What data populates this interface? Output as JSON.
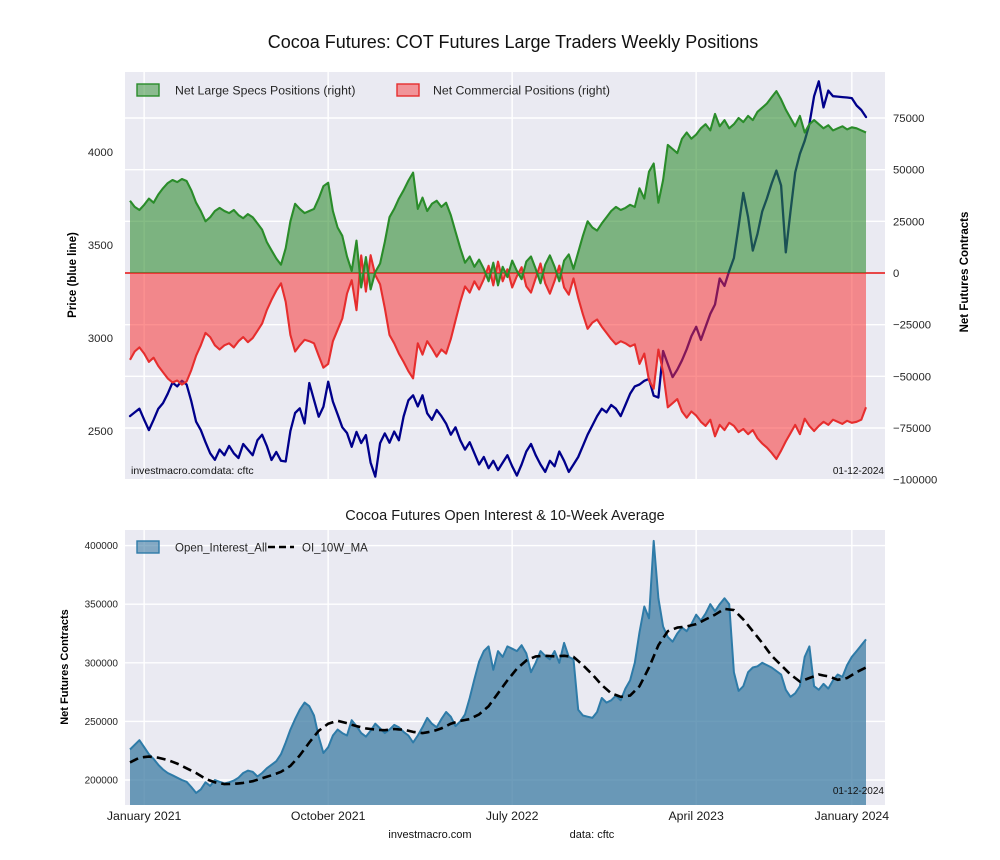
{
  "figure": {
    "title": "Cocoa Futures: COT Futures Large Traders Weekly Positions",
    "footer": {
      "source": "investmacro.com",
      "data_source": "data: cftc"
    }
  },
  "colors": {
    "axes_background": "#eaeaf2",
    "grid": "#ffffff",
    "specs_green_line": "#2a8c2a",
    "specs_green_fill": "rgba(44,140,44,0.58)",
    "commercial_red_line": "#e62e2e",
    "commercial_red_fill": "rgba(250,45,45,0.52)",
    "price_blue": "#00008b",
    "oi_fill": "rgba(62,124,163,0.75)",
    "oi_line": "#2e7ba8",
    "ma_black": "#000000"
  },
  "chart_data": [
    {
      "type": "area",
      "legend": [
        "Net Large Specs Positions (right)",
        "Net Commercial Positions (right)"
      ],
      "y_axis_left": {
        "label": "Price (blue line)",
        "tick_values": [
          2500,
          3000,
          3500,
          4000
        ],
        "tick_labels": [
          "2500",
          "3000",
          "3500",
          "4000"
        ],
        "range": [
          2236,
          4430
        ]
      },
      "y_axis_right": {
        "label": "Net Futures Contracts",
        "tick_values": [
          75000,
          50000,
          25000,
          0,
          -25000,
          -50000,
          -75000,
          -100000
        ],
        "tick_labels": [
          "75000",
          "50000",
          "25000",
          "0",
          "−25000",
          "−50000",
          "−75000",
          "−100000"
        ],
        "range": [
          -100000,
          97000
        ]
      },
      "annotations": {
        "source": "investmacro.com",
        "data_source": "data: cftc",
        "date": "01-12-2024"
      },
      "series": [
        {
          "name": "Net Large Specs Positions",
          "type": "area",
          "axis": "right",
          "values": [
            35000,
            32000,
            30500,
            33000,
            36000,
            34000,
            38000,
            41000,
            43500,
            45000,
            44000,
            45500,
            44500,
            40000,
            34000,
            30000,
            25000,
            27000,
            30000,
            31500,
            30000,
            29000,
            30500,
            28000,
            26500,
            28500,
            27000,
            24000,
            21000,
            15000,
            11000,
            7000,
            4000,
            12000,
            25000,
            33500,
            31000,
            29000,
            30000,
            31000,
            36000,
            42000,
            43700,
            30000,
            22000,
            18000,
            8000,
            1000,
            15700,
            -7000,
            7700,
            -8000,
            500,
            4600,
            15000,
            27000,
            31000,
            36000,
            40000,
            44700,
            48600,
            31000,
            36500,
            30000,
            33500,
            35000,
            32000,
            34000,
            28000,
            20000,
            12000,
            5000,
            8000,
            3000,
            6500,
            2000,
            -4000,
            5000,
            -6000,
            3000,
            -2000,
            6000,
            1000,
            -3000,
            5500,
            8000,
            2000,
            -5000,
            4000,
            8500,
            3000,
            -4000,
            6000,
            9000,
            2000,
            10000,
            18000,
            25000,
            22000,
            20500,
            24000,
            27000,
            30000,
            32000,
            30500,
            31500,
            33000,
            32000,
            41000,
            36000,
            49000,
            53000,
            34000,
            45000,
            62000,
            60000,
            58000,
            65000,
            68000,
            65000,
            67000,
            70000,
            72000,
            69000,
            77000,
            71000,
            74000,
            70000,
            72000,
            75000,
            73000,
            76000,
            74000,
            78000,
            80000,
            82000,
            85000,
            88000,
            84000,
            79000,
            75000,
            71000,
            76000,
            68000,
            72000,
            74000,
            72000,
            70000,
            71500,
            69000,
            70000,
            71000,
            69500,
            70500,
            70000,
            69000,
            68000
          ]
        },
        {
          "name": "Net Commercial Positions",
          "type": "area",
          "axis": "right",
          "values": [
            -42000,
            -38000,
            -36000,
            -39000,
            -43000,
            -41000,
            -45000,
            -48000,
            -51000,
            -53000,
            -52000,
            -54000,
            -52500,
            -47000,
            -40000,
            -35000,
            -29000,
            -31000,
            -35000,
            -37000,
            -35000,
            -34000,
            -36000,
            -33000,
            -31000,
            -33500,
            -31500,
            -28000,
            -24500,
            -18000,
            -13000,
            -8500,
            -5000,
            -14000,
            -30000,
            -38000,
            -35000,
            -32300,
            -33000,
            -34000,
            -40000,
            -45800,
            -44000,
            -33000,
            -27500,
            -22000,
            -10000,
            -3500,
            -18000,
            8500,
            -9000,
            8600,
            -1000,
            -5500,
            -17000,
            -30000,
            -34000,
            -39000,
            -43000,
            -47500,
            -51000,
            -34000,
            -39500,
            -33000,
            -36500,
            -40500,
            -37000,
            -39000,
            -32000,
            -23000,
            -14000,
            -6500,
            -9500,
            -4000,
            -8000,
            -3000,
            3500,
            -6000,
            5500,
            -4000,
            1800,
            -7000,
            -1500,
            2800,
            -6500,
            -9500,
            -2500,
            4600,
            -5000,
            -10000,
            -3800,
            3600,
            -7000,
            -10500,
            -2600,
            -12000,
            -20000,
            -27000,
            -24000,
            -22500,
            -26000,
            -29000,
            -32000,
            -34500,
            -33000,
            -34000,
            -35500,
            -34500,
            -44000,
            -39000,
            -52000,
            -56000,
            -37000,
            -48000,
            -65000,
            -63000,
            -61000,
            -67000,
            -70000,
            -67000,
            -69000,
            -72000,
            -74000,
            -71000,
            -79000,
            -73500,
            -76000,
            -72500,
            -74000,
            -77000,
            -75500,
            -78000,
            -76000,
            -80000,
            -82500,
            -84500,
            -87000,
            -90000,
            -86000,
            -81500,
            -77500,
            -73500,
            -78000,
            -70500,
            -74000,
            -76500,
            -74000,
            -72000,
            -73500,
            -71000,
            -72000,
            -73000,
            -71500,
            -72500,
            -72000,
            -71000,
            -65000
          ]
        },
        {
          "name": "Price",
          "type": "line",
          "axis": "left",
          "values": [
            2580,
            2600,
            2620,
            2560,
            2505,
            2560,
            2620,
            2650,
            2700,
            2760,
            2740,
            2770,
            2750,
            2660,
            2550,
            2505,
            2440,
            2380,
            2345,
            2400,
            2370,
            2420,
            2380,
            2355,
            2430,
            2400,
            2370,
            2450,
            2480,
            2420,
            2344,
            2387,
            2340,
            2336,
            2500,
            2597,
            2622,
            2541,
            2758,
            2667,
            2577,
            2630,
            2765,
            2658,
            2590,
            2520,
            2489,
            2415,
            2495,
            2435,
            2478,
            2330,
            2255,
            2435,
            2487,
            2437,
            2497,
            2450,
            2578,
            2665,
            2692,
            2632,
            2692,
            2595,
            2560,
            2613,
            2580,
            2540,
            2480,
            2520,
            2450,
            2400,
            2440,
            2380,
            2320,
            2360,
            2300,
            2340,
            2290,
            2330,
            2370,
            2310,
            2260,
            2320,
            2390,
            2430,
            2370,
            2320,
            2280,
            2340,
            2310,
            2390,
            2340,
            2280,
            2320,
            2360,
            2420,
            2480,
            2530,
            2580,
            2620,
            2600,
            2640,
            2620,
            2580,
            2640,
            2700,
            2740,
            2750,
            2770,
            2780,
            2690,
            2680,
            2930,
            2860,
            2790,
            2830,
            2880,
            2940,
            3010,
            3060,
            2990,
            3060,
            3130,
            3180,
            3320,
            3280,
            3360,
            3430,
            3600,
            3780,
            3650,
            3470,
            3560,
            3680,
            3750,
            3830,
            3900,
            3820,
            3460,
            3680,
            3890,
            3990,
            4060,
            4150,
            4300,
            4380,
            4240,
            4330,
            4300,
            4298,
            4295,
            4293,
            4290,
            4250,
            4226,
            4188
          ]
        }
      ]
    },
    {
      "type": "area",
      "title": "Cocoa Futures Open Interest & 10-Week Average",
      "legend": [
        "Open_Interest_All",
        "OI_10W_MA"
      ],
      "y_axis": {
        "label": "Net Futures Contracts",
        "tick_values": [
          200000,
          250000,
          300000,
          350000,
          400000
        ],
        "tick_labels": [
          "200000",
          "250000",
          "300000",
          "350000",
          "400000"
        ],
        "range": [
          178700,
          413400
        ]
      },
      "x_axis": {
        "tick_labels": [
          "January 2021",
          "October 2021",
          "July 2022",
          "April 2023",
          "January 2024"
        ],
        "tick_weeks": [
          3,
          42,
          81,
          120,
          153
        ],
        "n_weeks": 157
      },
      "annotations": {
        "date": "01-12-2024"
      },
      "series": [
        {
          "name": "Open_Interest_All",
          "type": "area",
          "values": [
            226000,
            230000,
            234000,
            228000,
            222000,
            218000,
            213000,
            209000,
            206000,
            204000,
            202000,
            200000,
            198500,
            194000,
            189000,
            192000,
            198000,
            195000,
            200000,
            198500,
            197000,
            198000,
            199500,
            202000,
            206000,
            208000,
            207000,
            203000,
            206000,
            210000,
            213000,
            216000,
            222000,
            232000,
            243000,
            252000,
            260000,
            266000,
            263000,
            255000,
            237000,
            223000,
            228000,
            238000,
            243000,
            240000,
            238000,
            251000,
            246000,
            240000,
            237000,
            242000,
            248000,
            244000,
            240000,
            243000,
            247000,
            245000,
            241000,
            238000,
            232000,
            238000,
            245000,
            253000,
            248000,
            245000,
            252000,
            258000,
            254000,
            246000,
            250000,
            256000,
            270000,
            286000,
            301000,
            310000,
            314000,
            294000,
            310000,
            305000,
            314000,
            312000,
            310000,
            315000,
            308000,
            292000,
            300000,
            310000,
            306000,
            303000,
            310000,
            300000,
            317000,
            305000,
            303000,
            260000,
            255000,
            254000,
            253000,
            258000,
            270000,
            266000,
            268000,
            272000,
            268000,
            278000,
            285000,
            300000,
            326000,
            348000,
            338000,
            404000,
            355000,
            331000,
            322000,
            318000,
            325000,
            330000,
            327000,
            333000,
            341000,
            336000,
            342000,
            350000,
            344000,
            350000,
            355000,
            350000,
            292000,
            276000,
            280000,
            292000,
            296000,
            297000,
            300000,
            298000,
            296000,
            293000,
            290000,
            277000,
            271000,
            274000,
            280000,
            305000,
            314000,
            280000,
            277000,
            282000,
            278000,
            285000,
            290000,
            288000,
            298000,
            305000,
            310000,
            315000,
            320000
          ]
        },
        {
          "name": "OI_10W_MA",
          "type": "dashed-line",
          "values": [
            215000,
            217000,
            219000,
            219500,
            220000,
            219500,
            219000,
            218000,
            217000,
            215500,
            214000,
            212000,
            210000,
            208000,
            206000,
            203500,
            201000,
            199500,
            198000,
            197300,
            196500,
            196600,
            196800,
            197100,
            197500,
            198200,
            199000,
            200200,
            201500,
            202700,
            204000,
            205500,
            207000,
            209500,
            212000,
            216500,
            221000,
            226500,
            232000,
            237000,
            242000,
            245000,
            248000,
            249200,
            250500,
            249500,
            248500,
            247200,
            246000,
            245000,
            244000,
            243500,
            243000,
            242700,
            242500,
            243000,
            243500,
            243200,
            243000,
            242000,
            241000,
            240500,
            240000,
            240700,
            241500,
            242700,
            244000,
            246000,
            248000,
            249200,
            250500,
            251200,
            252000,
            254000,
            256000,
            259500,
            263000,
            268500,
            274000,
            279500,
            285000,
            290000,
            295000,
            298500,
            302000,
            303700,
            305500,
            305700,
            306000,
            305700,
            305500,
            305700,
            306000,
            305500,
            305000,
            301500,
            298000,
            294000,
            290000,
            285500,
            281000,
            277500,
            274000,
            272500,
            271000,
            271500,
            272000,
            276000,
            280000,
            288000,
            296000,
            305500,
            315000,
            321000,
            327000,
            328500,
            330000,
            330500,
            331000,
            332000,
            333000,
            335000,
            337000,
            339000,
            341000,
            343500,
            346000,
            345500,
            345000,
            341000,
            337000,
            332000,
            327000,
            322000,
            317000,
            311500,
            306000,
            302000,
            298000,
            294000,
            290000,
            287000,
            284000,
            285500,
            287000,
            288500,
            290000,
            289200,
            288500,
            287000,
            285500,
            286200,
            287000,
            289500,
            292000,
            294000,
            296000
          ]
        }
      ]
    }
  ]
}
